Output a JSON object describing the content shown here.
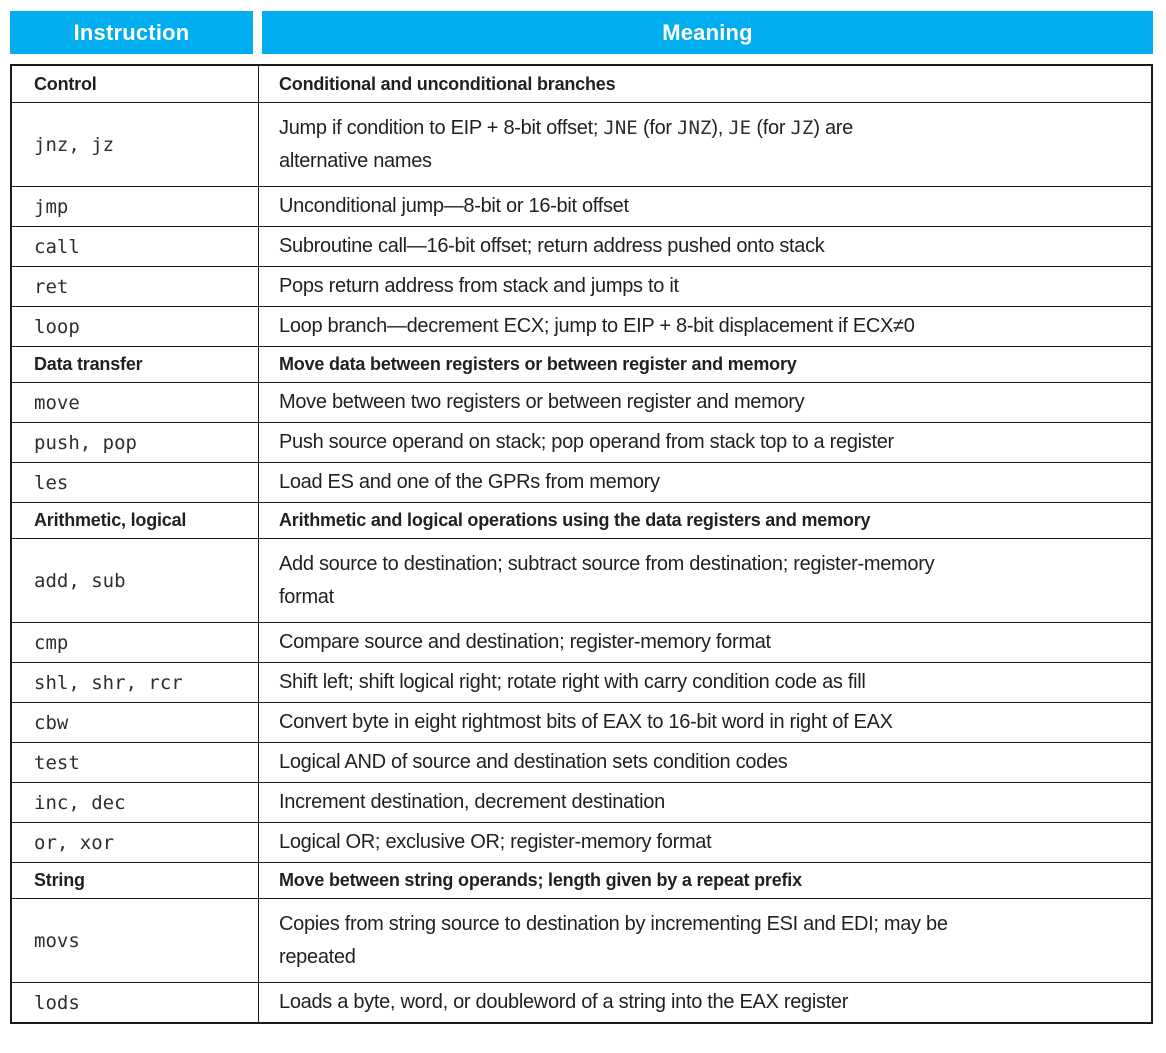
{
  "colors": {
    "header_bg": "#00AEEF",
    "header_text": "#FFFFFF",
    "border": "#1A1A1A",
    "body_text": "#231F20"
  },
  "table": {
    "header": {
      "instruction": "Instruction",
      "meaning": "Meaning"
    },
    "rows": [
      {
        "type": "category",
        "instruction": "Control",
        "meaning": [
          {
            "text": "Conditional and unconditional branches"
          }
        ]
      },
      {
        "type": "double",
        "instruction": "jnz, jz",
        "meaning": [
          {
            "text": "Jump if condition to EIP + 8-bit offset; "
          },
          {
            "text": "JNE",
            "mono": true
          },
          {
            "text": " (for "
          },
          {
            "text": "JNZ",
            "mono": true
          },
          {
            "text": "), "
          },
          {
            "text": "JE",
            "mono": true
          },
          {
            "text": " (for "
          },
          {
            "text": "JZ",
            "mono": true
          },
          {
            "text": ") are"
          },
          {
            "br": true
          },
          {
            "text": "alternative names"
          }
        ]
      },
      {
        "type": "single",
        "instruction": "jmp",
        "meaning": [
          {
            "text": "Unconditional jump—8-bit or 16-bit offset"
          }
        ]
      },
      {
        "type": "single",
        "instruction": "call",
        "meaning": [
          {
            "text": "Subroutine call—16-bit offset; return address pushed onto stack"
          }
        ]
      },
      {
        "type": "single",
        "instruction": "ret",
        "meaning": [
          {
            "text": "Pops return address from stack and jumps to it"
          }
        ]
      },
      {
        "type": "single",
        "instruction": "loop",
        "meaning": [
          {
            "text": "Loop branch—decrement ECX; jump to EIP + 8-bit displacement if ECX≠0"
          }
        ]
      },
      {
        "type": "category",
        "instruction": "Data transfer",
        "meaning": [
          {
            "text": "Move data between registers or between register and memory"
          }
        ]
      },
      {
        "type": "single",
        "instruction": "move",
        "meaning": [
          {
            "text": "Move between two registers or between register and memory"
          }
        ]
      },
      {
        "type": "single",
        "instruction": "push, pop",
        "meaning": [
          {
            "text": "Push source operand on stack; pop operand from stack top to a register"
          }
        ]
      },
      {
        "type": "single",
        "instruction": "les",
        "meaning": [
          {
            "text": "Load ES and one of the GPRs from memory"
          }
        ]
      },
      {
        "type": "category",
        "instruction": "Arithmetic, logical",
        "meaning": [
          {
            "text": "Arithmetic and logical operations using the data registers and memory"
          }
        ]
      },
      {
        "type": "double",
        "instruction": "add, sub",
        "meaning": [
          {
            "text": "Add source to destination; subtract source from destination; register-memory"
          },
          {
            "br": true
          },
          {
            "text": "format"
          }
        ]
      },
      {
        "type": "single",
        "instruction": "cmp",
        "meaning": [
          {
            "text": "Compare source and destination; register-memory format"
          }
        ]
      },
      {
        "type": "single",
        "instruction": "shl, shr, rcr",
        "meaning": [
          {
            "text": "Shift left; shift logical right; rotate right with carry condition code as fill"
          }
        ]
      },
      {
        "type": "single",
        "instruction": "cbw",
        "meaning": [
          {
            "text": "Convert byte in eight rightmost bits of EAX to 16-bit word in right of EAX"
          }
        ]
      },
      {
        "type": "single",
        "instruction": "test",
        "meaning": [
          {
            "text": "Logical AND of source and destination sets condition codes"
          }
        ]
      },
      {
        "type": "single",
        "instruction": "inc, dec",
        "meaning": [
          {
            "text": "Increment destination, decrement destination"
          }
        ]
      },
      {
        "type": "single",
        "instruction": "or, xor",
        "meaning": [
          {
            "text": "Logical OR; exclusive OR; register-memory format"
          }
        ]
      },
      {
        "type": "category",
        "instruction": "String",
        "meaning": [
          {
            "text": "Move between string operands; length given by a repeat prefix"
          }
        ]
      },
      {
        "type": "double",
        "instruction": "movs",
        "meaning": [
          {
            "text": "Copies from string source to destination by incrementing ESI and EDI; may be"
          },
          {
            "br": true
          },
          {
            "text": "repeated"
          }
        ]
      },
      {
        "type": "single",
        "instruction": "lods",
        "meaning": [
          {
            "text": "Loads a byte, word, or doubleword of a string into the EAX register"
          }
        ]
      }
    ]
  }
}
